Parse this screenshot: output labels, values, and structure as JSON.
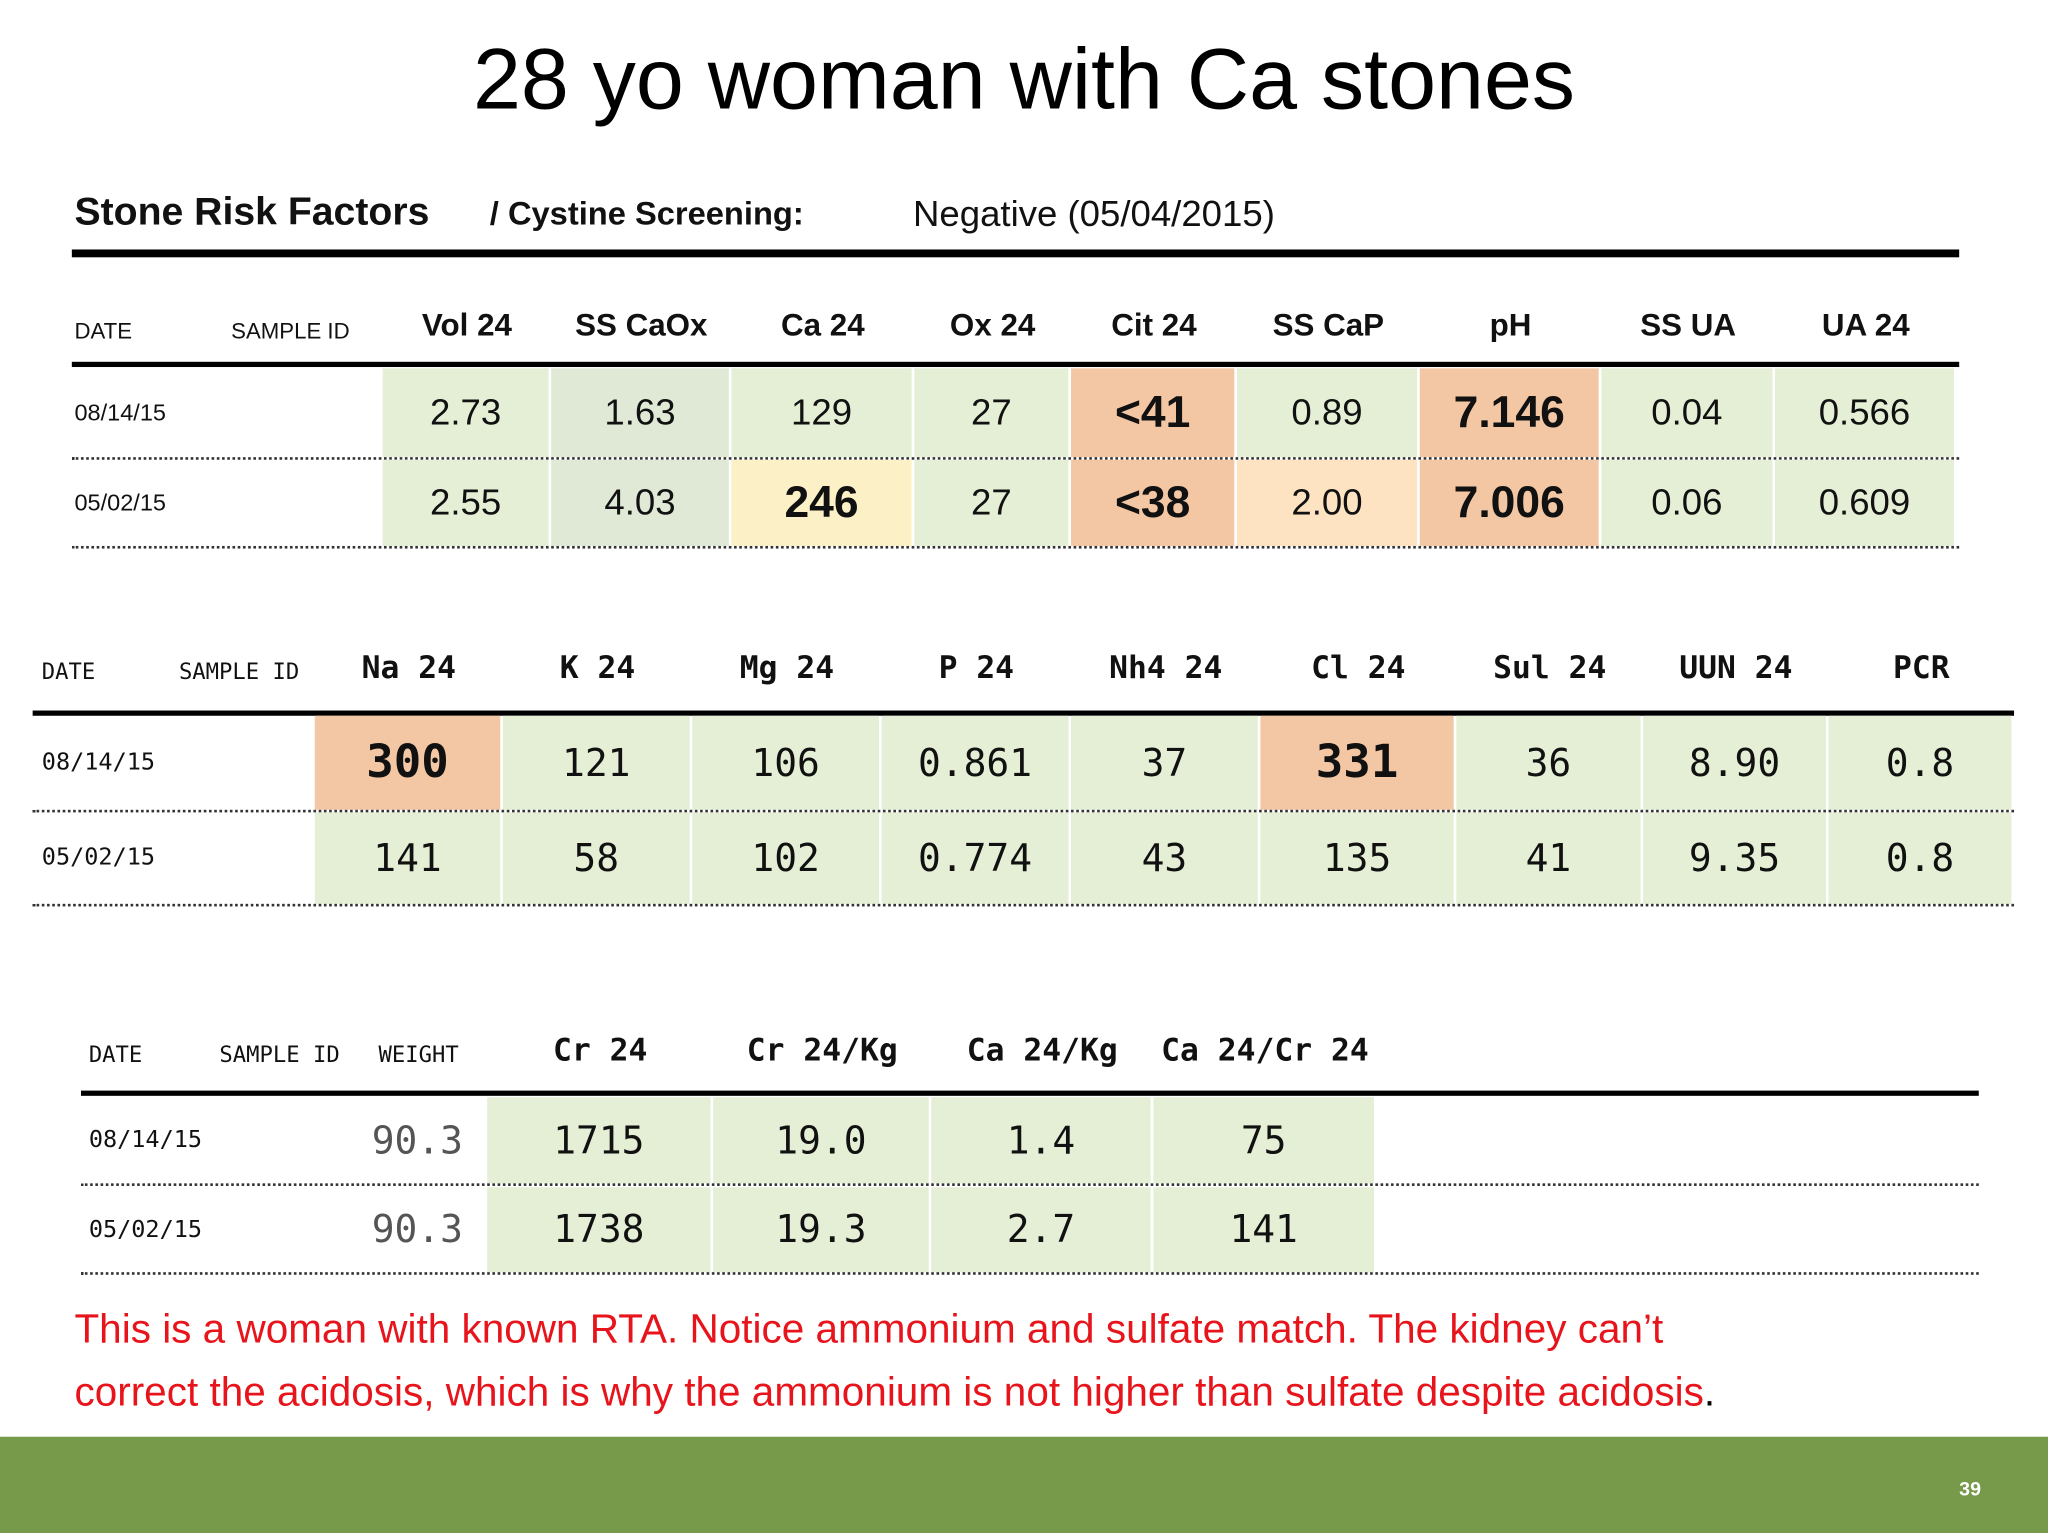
{
  "title": "28 yo woman with Ca stones",
  "header": {
    "label": "Stone Risk Factors",
    "sub": "/ Cystine Screening:",
    "value": "Negative (05/04/2015)"
  },
  "tables": [
    {
      "columns": [
        "DATE",
        "SAMPLE ID",
        "Vol 24",
        "SS CaOx",
        "Ca 24",
        "Ox 24",
        "Cit 24",
        "SS CaP",
        "pH",
        "SS UA",
        "UA 24"
      ],
      "rows": [
        {
          "date": "08/14/15",
          "values": [
            "2.73",
            "1.63",
            "129",
            "27",
            "<41",
            "0.89",
            "7.146",
            "0.04",
            "0.566"
          ]
        },
        {
          "date": "05/02/15",
          "values": [
            "2.55",
            "4.03",
            "246",
            "27",
            "<38",
            "2.00",
            "7.006",
            "0.06",
            "0.609"
          ]
        }
      ]
    },
    {
      "columns": [
        "DATE",
        "SAMPLE ID",
        "Na 24",
        "K 24",
        "Mg 24",
        "P 24",
        "Nh4 24",
        "Cl 24",
        "Sul 24",
        "UUN 24",
        "PCR"
      ],
      "rows": [
        {
          "date": "08/14/15",
          "values": [
            "300",
            "121",
            "106",
            "0.861",
            "37",
            "331",
            "36",
            "8.90",
            "0.8"
          ]
        },
        {
          "date": "05/02/15",
          "values": [
            "141",
            "58",
            "102",
            "0.774",
            "43",
            "135",
            "41",
            "9.35",
            "0.8"
          ]
        }
      ]
    },
    {
      "columns": [
        "DATE",
        "SAMPLE ID",
        "WEIGHT",
        "Cr 24",
        "Cr 24/Kg",
        "Ca 24/Kg",
        "Ca 24/Cr 24"
      ],
      "rows": [
        {
          "date": "08/14/15",
          "values": [
            "90.3",
            "1715",
            "19.0",
            "1.4",
            "75"
          ]
        },
        {
          "date": "05/02/15",
          "values": [
            "90.3",
            "1738",
            "19.3",
            "2.7",
            "141"
          ]
        }
      ]
    }
  ],
  "note": {
    "lines": [
      "This is a woman with known RTA. Notice ammonium and sulfate match. The kidney can’t",
      "correct the acidosis, which is why the ammonium is not higher than sulfate despite acidosis"
    ],
    "end": "."
  },
  "page_number": "39"
}
